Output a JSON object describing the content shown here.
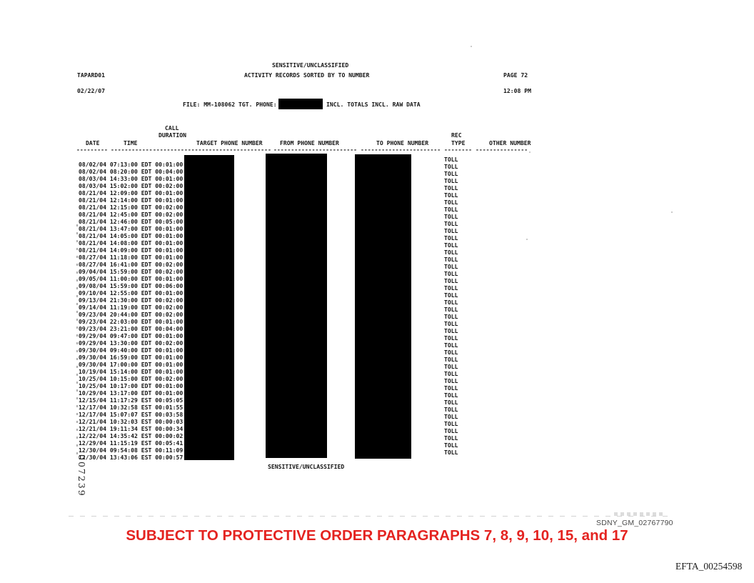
{
  "page_header": {
    "classification": "SENSITIVE/UNCLASSIFIED",
    "report_id": "TAPARD01",
    "title": "ACTIVITY RECORDS SORTED BY TO NUMBER",
    "page_number": "PAGE 72",
    "report_date": "02/22/07",
    "report_time": "12:08 PM"
  },
  "file_line": {
    "prefix": "FILE: MM-108062 TGT. PHONE:",
    "suffix": "INCL. TOTALS INCL. RAW DATA",
    "phone_redacted": true
  },
  "table": {
    "headers": {
      "call": "CALL",
      "duration": "DURATION",
      "rec": "REC",
      "date": "DATE",
      "time": "TIME",
      "target_phone": "TARGET PHONE NUMBER",
      "from_phone": "FROM PHONE NUMBER",
      "to_phone": "TO PHONE NUMBER",
      "type": "TYPE",
      "other_number": "OTHER NUMBER"
    },
    "dash_groups": [
      "---------",
      "------------",
      "---------",
      "-------------------------",
      "------------------------",
      "-----------------------",
      "--------",
      "---------------"
    ],
    "redacted_columns": [
      "TARGET PHONE NUMBER",
      "FROM PHONE NUMBER",
      "TO PHONE NUMBER"
    ],
    "rows": [
      {
        "date": "08/02/04",
        "time": "07:13:00 EDT",
        "duration": "00:01:00",
        "rec_type": "TOLL",
        "other_number": ""
      },
      {
        "date": "08/02/04",
        "time": "08:20:00 EDT",
        "duration": "00:04:00",
        "rec_type": "TOLL",
        "other_number": ""
      },
      {
        "date": "08/03/04",
        "time": "14:33:00 EDT",
        "duration": "00:01:00",
        "rec_type": "TOLL",
        "other_number": ""
      },
      {
        "date": "08/03/04",
        "time": "15:02:00 EDT",
        "duration": "00:02:00",
        "rec_type": "TOLL",
        "other_number": ""
      },
      {
        "date": "08/21/04",
        "time": "12:09:00 EDT",
        "duration": "00:01:00",
        "rec_type": "TOLL",
        "other_number": ""
      },
      {
        "date": "08/21/04",
        "time": "12:14:00 EDT",
        "duration": "00:01:00",
        "rec_type": "TOLL",
        "other_number": ""
      },
      {
        "date": "08/21/04",
        "time": "12:15:00 EDT",
        "duration": "00:02:00",
        "rec_type": "TOLL",
        "other_number": ""
      },
      {
        "date": "08/21/04",
        "time": "12:45:00 EDT",
        "duration": "00:02:00",
        "rec_type": "TOLL",
        "other_number": ""
      },
      {
        "date": "08/21/04",
        "time": "12:46:00 EDT",
        "duration": "00:05:00",
        "rec_type": "TOLL",
        "other_number": ""
      },
      {
        "date": "08/21/04",
        "time": "13:47:00 EDT",
        "duration": "00:01:00",
        "rec_type": "TOLL",
        "other_number": ""
      },
      {
        "date": "08/21/04",
        "time": "14:05:00 EDT",
        "duration": "00:01:00",
        "rec_type": "TOLL",
        "other_number": ""
      },
      {
        "date": "08/21/04",
        "time": "14:08:00 EDT",
        "duration": "00:01:00",
        "rec_type": "TOLL",
        "other_number": ""
      },
      {
        "date": "08/21/04",
        "time": "14:09:00 EDT",
        "duration": "00:01:00",
        "rec_type": "TOLL",
        "other_number": ""
      },
      {
        "date": "08/27/04",
        "time": "11:18:00 EDT",
        "duration": "00:01:00",
        "rec_type": "TOLL",
        "other_number": ""
      },
      {
        "date": "08/27/04",
        "time": "16:41:00 EDT",
        "duration": "00:02:00",
        "rec_type": "TOLL",
        "other_number": ""
      },
      {
        "date": "09/04/04",
        "time": "15:59:00 EDT",
        "duration": "00:02:00",
        "rec_type": "TOLL",
        "other_number": ""
      },
      {
        "date": "09/05/04",
        "time": "11:00:00 EDT",
        "duration": "00:01:00",
        "rec_type": "TOLL",
        "other_number": ""
      },
      {
        "date": "09/08/04",
        "time": "15:59:00 EDT",
        "duration": "00:06:00",
        "rec_type": "TOLL",
        "other_number": ""
      },
      {
        "date": "09/10/04",
        "time": "12:55:00 EDT",
        "duration": "00:01:00",
        "rec_type": "TOLL",
        "other_number": ""
      },
      {
        "date": "09/13/04",
        "time": "21:30:00 EDT",
        "duration": "00:02:00",
        "rec_type": "TOLL",
        "other_number": ""
      },
      {
        "date": "09/14/04",
        "time": "11:19:00 EDT",
        "duration": "00:02:00",
        "rec_type": "TOLL",
        "other_number": ""
      },
      {
        "date": "09/23/04",
        "time": "20:44:00 EDT",
        "duration": "00:02:00",
        "rec_type": "TOLL",
        "other_number": ""
      },
      {
        "date": "09/23/04",
        "time": "22:03:00 EDT",
        "duration": "00:01:00",
        "rec_type": "TOLL",
        "other_number": ""
      },
      {
        "date": "09/23/04",
        "time": "23:21:00 EDT",
        "duration": "00:04:00",
        "rec_type": "TOLL",
        "other_number": ""
      },
      {
        "date": "09/29/04",
        "time": "09:47:00 EDT",
        "duration": "00:01:00",
        "rec_type": "TOLL",
        "other_number": ""
      },
      {
        "date": "09/29/04",
        "time": "13:30:00 EDT",
        "duration": "00:02:00",
        "rec_type": "TOLL",
        "other_number": ""
      },
      {
        "date": "09/30/04",
        "time": "09:40:00 EDT",
        "duration": "00:01:00",
        "rec_type": "TOLL",
        "other_number": ""
      },
      {
        "date": "09/30/04",
        "time": "16:59:00 EDT",
        "duration": "00:01:00",
        "rec_type": "TOLL",
        "other_number": ""
      },
      {
        "date": "09/30/04",
        "time": "17:00:00 EDT",
        "duration": "00:01:00",
        "rec_type": "TOLL",
        "other_number": ""
      },
      {
        "date": "10/19/04",
        "time": "15:14:00 EDT",
        "duration": "00:01:00",
        "rec_type": "TOLL",
        "other_number": ""
      },
      {
        "date": "10/25/04",
        "time": "10:15:00 EDT",
        "duration": "00:02:00",
        "rec_type": "TOLL",
        "other_number": ""
      },
      {
        "date": "10/25/04",
        "time": "10:17:00 EDT",
        "duration": "00:01:00",
        "rec_type": "TOLL",
        "other_number": ""
      },
      {
        "date": "10/29/04",
        "time": "13:17:00 EDT",
        "duration": "00:01:00",
        "rec_type": "TOLL",
        "other_number": ""
      },
      {
        "date": "12/15/04",
        "time": "11:17:29 EST",
        "duration": "00:05:05",
        "rec_type": "TOLL",
        "other_number": ""
      },
      {
        "date": "12/17/04",
        "time": "10:32:58 EST",
        "duration": "00:01:55",
        "rec_type": "TOLL",
        "other_number": ""
      },
      {
        "date": "12/17/04",
        "time": "15:07:07 EST",
        "duration": "00:03:58",
        "rec_type": "TOLL",
        "other_number": ""
      },
      {
        "date": "12/21/04",
        "time": "10:32:03 EST",
        "duration": "00:00:03",
        "rec_type": "TOLL",
        "other_number": ""
      },
      {
        "date": "12/21/04",
        "time": "19:11:34 EST",
        "duration": "00:00:34",
        "rec_type": "TOLL",
        "other_number": ""
      },
      {
        "date": "12/22/04",
        "time": "14:35:42 EST",
        "duration": "00:00:02",
        "rec_type": "TOLL",
        "other_number": ""
      },
      {
        "date": "12/29/04",
        "time": "11:15:19 EST",
        "duration": "00:05:41",
        "rec_type": "TOLL",
        "other_number": ""
      },
      {
        "date": "12/30/04",
        "time": "09:54:08 EST",
        "duration": "00:11:09",
        "rec_type": "TOLL",
        "other_number": ""
      },
      {
        "date": "12/30/04",
        "time": "13:43:06 EST",
        "duration": "00:00:57",
        "rec_type": "TOLL",
        "other_number": ""
      }
    ]
  },
  "page_footer": {
    "classification": "SENSITIVE/UNCLASSIFIED"
  },
  "stamps": {
    "bates_vertical": "007239",
    "sdny_number": "SDNY_GM_02767790",
    "protective_order": "SUBJECT TO PROTECTIVE ORDER PARAGRAPHS 7, 8, 9, 10, 15, and 17",
    "efta_number": "EFTA_00254598"
  },
  "colors": {
    "redaction": "#000000",
    "protective_red": "#e42320",
    "sdny_gray": "#4a4a4a"
  }
}
